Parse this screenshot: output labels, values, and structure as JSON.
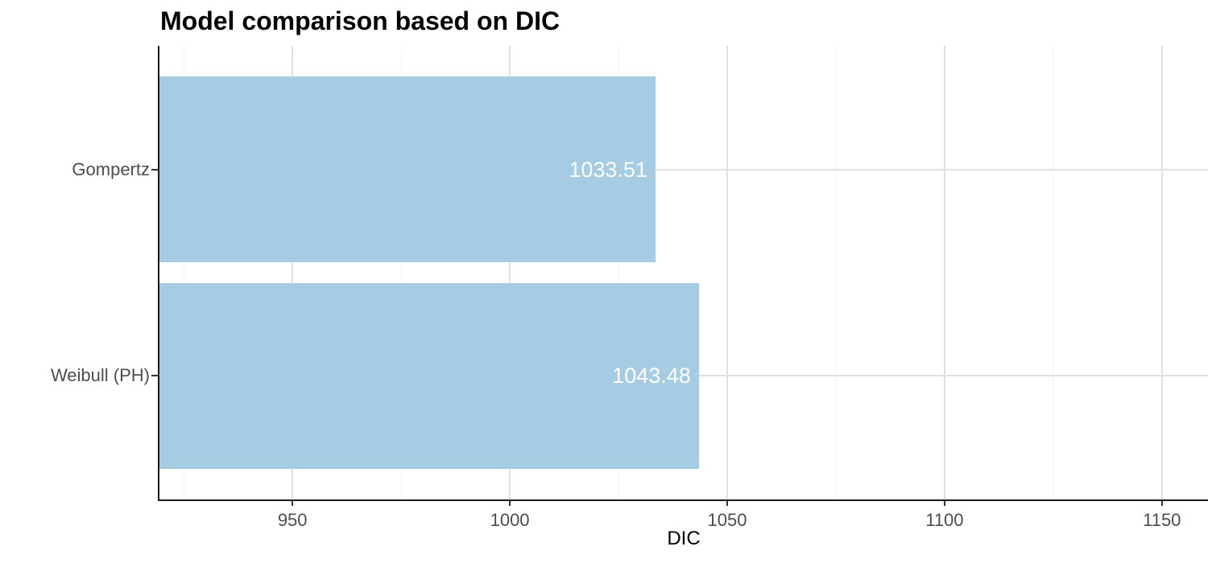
{
  "chart_data": {
    "type": "bar",
    "orientation": "horizontal",
    "title": "Model comparison based on DIC",
    "xlabel": "DIC",
    "ylabel": "",
    "categories": [
      "Gompertz",
      "Weibull (PH)"
    ],
    "values": [
      1033.51,
      1043.48
    ],
    "value_labels": [
      "1033.51",
      "1043.48"
    ],
    "xlim": [
      919.4,
      1160.6
    ],
    "x_major_ticks": [
      950,
      1000,
      1050,
      1100,
      1150
    ],
    "x_major_tick_labels": [
      "950",
      "1000",
      "1050",
      "1100",
      "1150"
    ],
    "x_minor_gridlines": [
      925,
      975,
      1025,
      1075,
      1125
    ],
    "grid": "vertical major+minor, horizontal major at category centers",
    "legend": "none",
    "bar_width_fraction": 0.9,
    "colors": {
      "bar_fill": "#A5CCE3",
      "value_label": "#FFFFFF",
      "axis_line": "#1A1A1A",
      "tick_mark": "#333333",
      "axis_text": "#4D4D4D",
      "grid_major": "#E0E0E0",
      "grid_minor": "#F2F2F2",
      "background": "#FFFFFF"
    }
  }
}
